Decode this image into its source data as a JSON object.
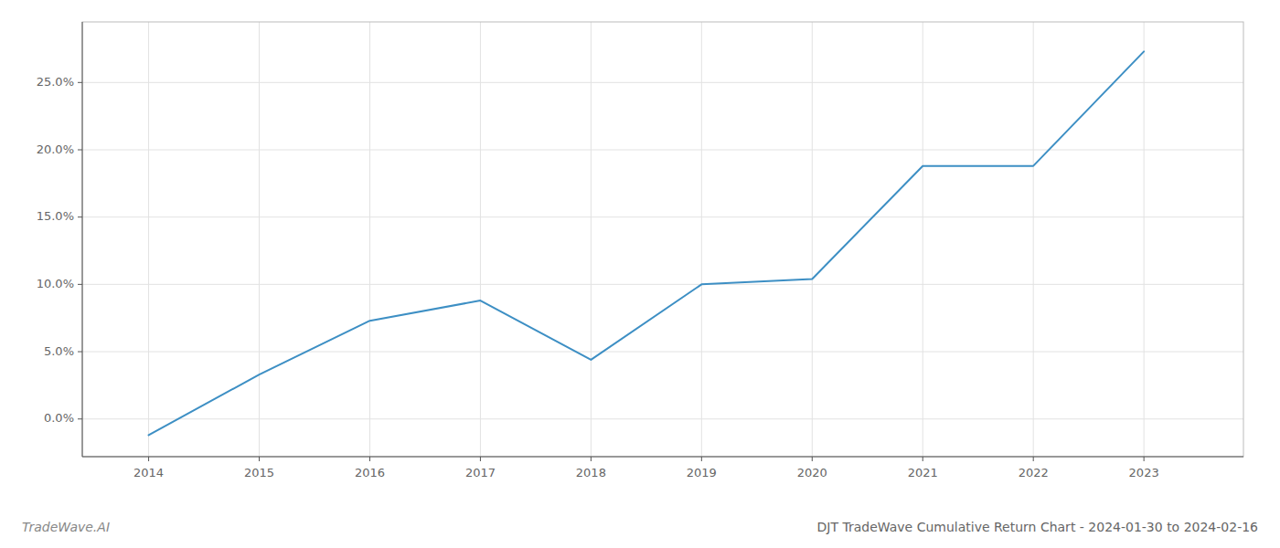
{
  "chart_data": {
    "type": "line",
    "title": "DJT TradeWave Cumulative Return Chart - 2024-01-30 to 2024-02-16",
    "annotations": [
      "TradeWave.AI"
    ],
    "x": [
      2014,
      2015,
      2016,
      2017,
      2018,
      2019,
      2020,
      2021,
      2022,
      2023
    ],
    "values": [
      -0.012,
      0.033,
      0.073,
      0.088,
      0.044,
      0.1,
      0.104,
      0.188,
      0.188,
      0.273
    ],
    "color": "#3d8fc4",
    "xlim": [
      2013.4,
      2023.9
    ],
    "xticks": [
      2014,
      2015,
      2016,
      2017,
      2018,
      2019,
      2020,
      2021,
      2022,
      2023
    ],
    "ylim": [
      -0.028,
      0.295
    ],
    "yticks": [
      {
        "value": 0.0,
        "label": "0.0%"
      },
      {
        "value": 0.05,
        "label": "5.0%"
      },
      {
        "value": 0.1,
        "label": "10.0%"
      },
      {
        "value": 0.15,
        "label": "15.0%"
      },
      {
        "value": 0.2,
        "label": "20.0%"
      },
      {
        "value": 0.25,
        "label": "25.0%"
      }
    ],
    "grid": true
  }
}
